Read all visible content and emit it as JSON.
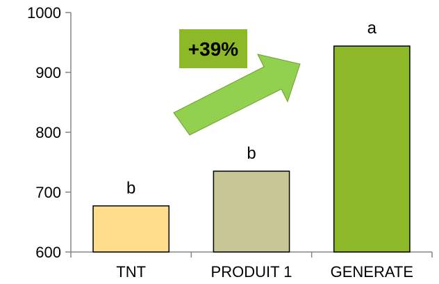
{
  "chart_data": {
    "type": "bar",
    "categories": [
      "TNT",
      "PRODUIT 1",
      "GENERATE"
    ],
    "values": [
      677,
      735,
      944
    ],
    "significance": [
      "b",
      "b",
      "a"
    ],
    "colors": [
      "#FFDD8C",
      "#C8C696",
      "#8DB827"
    ],
    "ylim": [
      600,
      1000
    ],
    "yticks": [
      "600",
      "700",
      "800",
      "900",
      "1000"
    ],
    "grid": false,
    "annotation": {
      "text": "+39%",
      "badge_color": "#8DB827",
      "arrow_color": "#92D050"
    }
  }
}
